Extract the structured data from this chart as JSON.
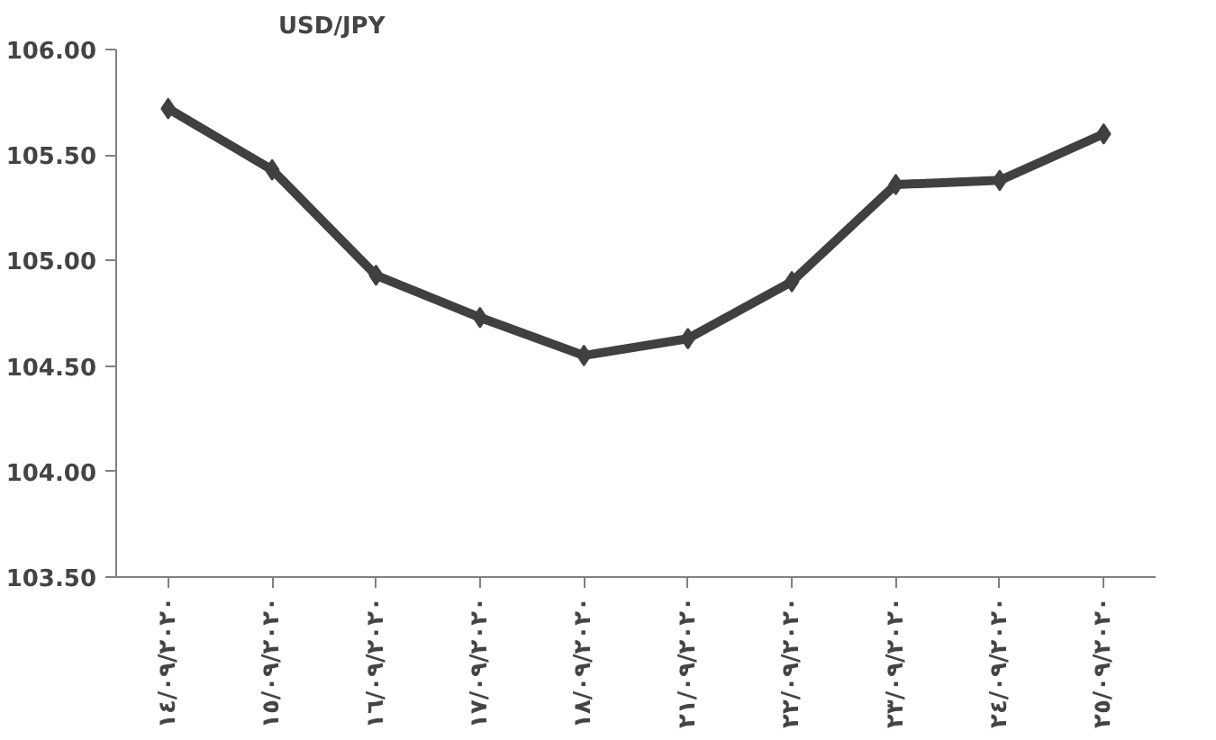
{
  "chart_data": {
    "type": "line",
    "ylabel": "USD/JPY",
    "categories": [
      "١٤/٠٩/٢٠٢٠",
      "١٥/٠٩/٢٠٢٠",
      "١٦/٠٩/٢٠٢٠",
      "١٧/٠٩/٢٠٢٠",
      "١٨/٠٩/٢٠٢٠",
      "٢١/٠٩/٢٠٢٠",
      "٢٢/٠٩/٢٠٢٠",
      "٢٣/٠٩/٢٠٢٠",
      "٢٤/٠٩/٢٠٢٠",
      "٢٥/٠٩/٢٠٢٠"
    ],
    "series": [
      {
        "color": "#404040",
        "values": [
          105.72,
          105.43,
          104.93,
          104.73,
          104.55,
          104.63,
          104.9,
          105.36,
          105.38,
          105.6
        ]
      }
    ],
    "ylim": [
      103.5,
      106.0
    ],
    "yticks": [
      {
        "value": 103.5,
        "label": "103.50"
      },
      {
        "value": 104.0,
        "label": "104.00"
      },
      {
        "value": 104.5,
        "label": "104.50"
      },
      {
        "value": 105.0,
        "label": "105.00"
      },
      {
        "value": 105.5,
        "label": "105.50"
      },
      {
        "value": 106.0,
        "label": "106.00"
      }
    ],
    "grid": false,
    "marker": "diamond",
    "line_style": "solid"
  }
}
